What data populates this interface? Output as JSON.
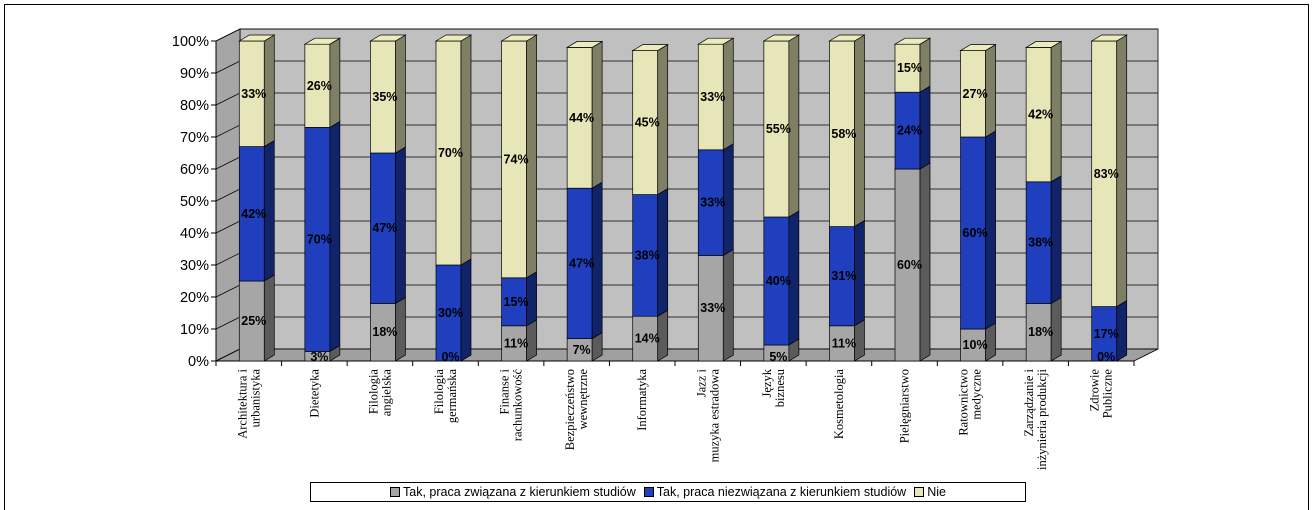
{
  "chart_data": {
    "type": "bar",
    "stacked": true,
    "three_d": true,
    "categories": [
      "Architektura i urbanistyka",
      "Dietetyka",
      "Filologia angielska",
      "Filologia germańska",
      "Finanse i rachunkowość",
      "Bezpieczeństwo wewnętrzne",
      "Informatyka",
      "Jazz i muzyka estradowa",
      "Język biznesu",
      "Kosmetologia",
      "Pielęgniarstwo",
      "Ratownictwo medyczne",
      "Zarządzanie i inżynieria produkcji",
      "Zdrowie Publiczne"
    ],
    "series": [
      {
        "name": "Tak, praca związana z kierunkiem studiów",
        "color": "#a6a6a6",
        "values": [
          25,
          3,
          18,
          0,
          11,
          7,
          14,
          33,
          5,
          11,
          60,
          10,
          18,
          0
        ]
      },
      {
        "name": "Tak, praca niezwiązana z kierunkiem studiów",
        "color": "#1f3fbf",
        "values": [
          42,
          70,
          47,
          30,
          15,
          47,
          38,
          33,
          40,
          31,
          24,
          60,
          38,
          17
        ]
      },
      {
        "name": "Nie",
        "color": "#e6e6b8",
        "values": [
          33,
          26,
          35,
          70,
          74,
          44,
          45,
          33,
          55,
          58,
          15,
          27,
          42,
          83
        ]
      }
    ],
    "data_labels": [
      [
        "25%",
        "3%",
        "18%",
        "0%",
        "11%",
        "7%",
        "14%",
        "33%",
        "5%",
        "11%",
        "60%",
        "10%",
        "18%",
        "0%"
      ],
      [
        "42%",
        "70%",
        "47%",
        "30%",
        "15%",
        "47%",
        "38%",
        "33%",
        "40%",
        "31%",
        "24%",
        "60%",
        "38%",
        "17%"
      ],
      [
        "33%",
        "26%",
        "35%",
        "70%",
        "74%",
        "44%",
        "45%",
        "33%",
        "55%",
        "58%",
        "15%",
        "27%",
        "42%",
        "83%"
      ]
    ],
    "y_ticks": [
      "0%",
      "10%",
      "20%",
      "30%",
      "40%",
      "50%",
      "60%",
      "70%",
      "80%",
      "90%",
      "100%"
    ],
    "ylim": [
      0,
      100
    ],
    "grid": true,
    "legend_position": "bottom"
  }
}
